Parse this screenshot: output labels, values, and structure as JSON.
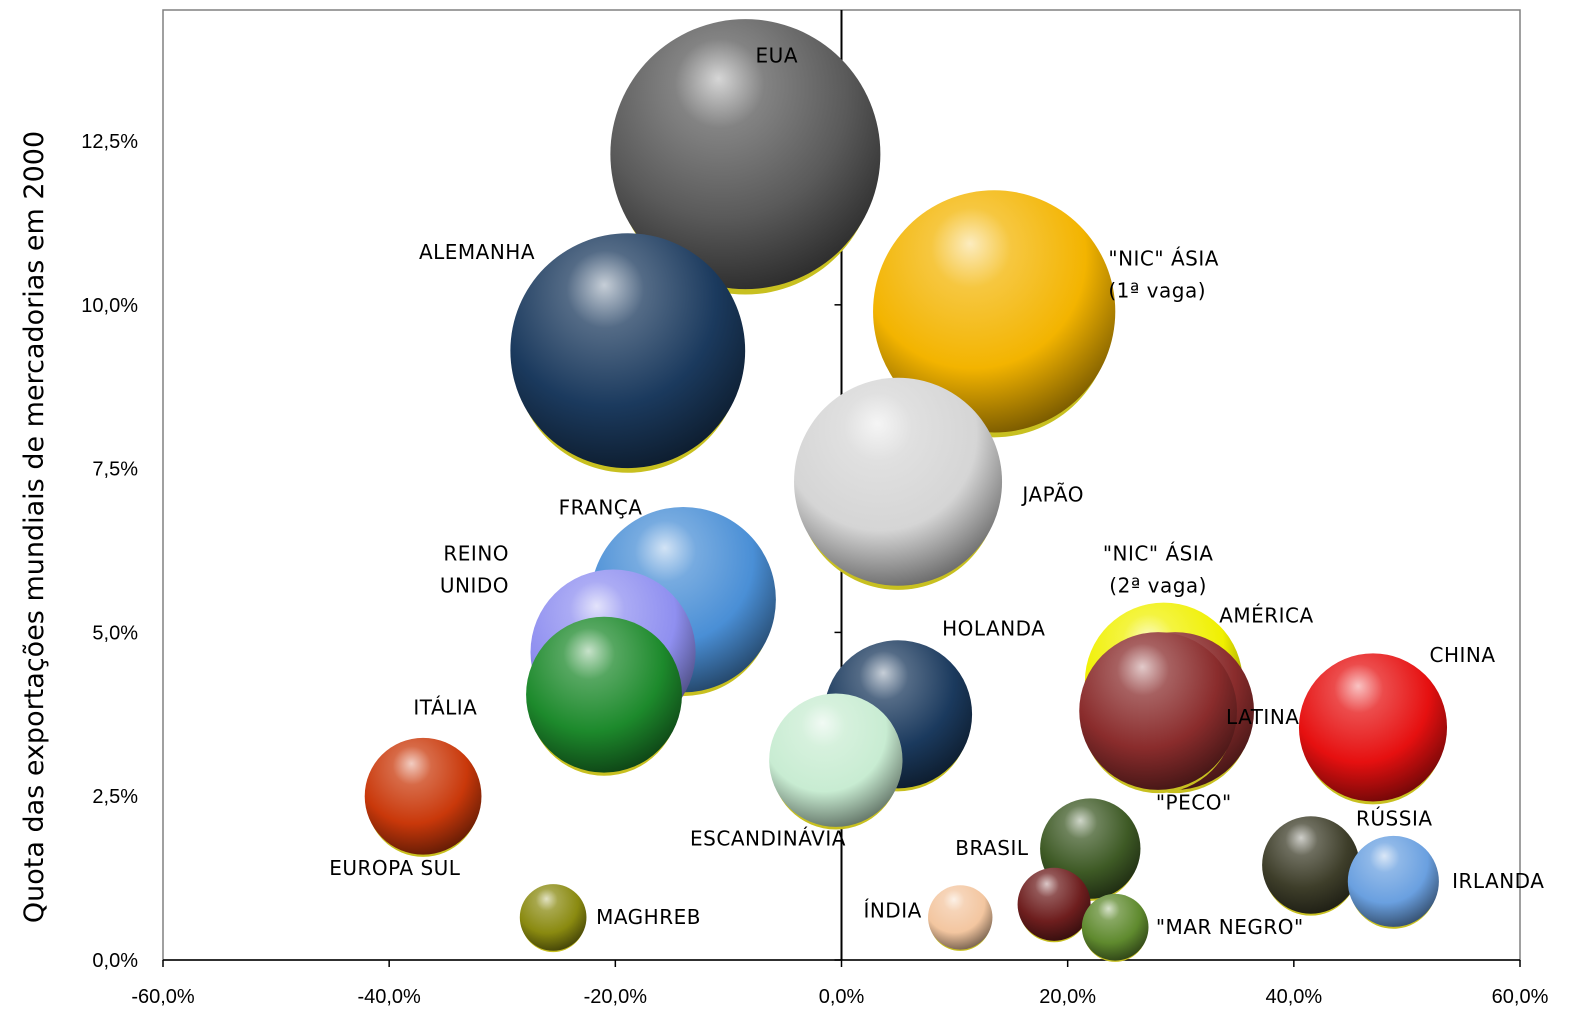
{
  "chart_data": {
    "type": "bubble",
    "title": "",
    "xlabel": "",
    "ylabel": "Quota das exportações mundiais de mercadorias em 2000",
    "xlim": [
      -60,
      60
    ],
    "ylim": [
      0,
      14.5
    ],
    "x_ticks": [
      {
        "value": -60,
        "label": "-60,0%"
      },
      {
        "value": -40,
        "label": "-40,0%"
      },
      {
        "value": -20,
        "label": "-20,0%"
      },
      {
        "value": 0,
        "label": "0,0%"
      },
      {
        "value": 20,
        "label": "20,0%"
      },
      {
        "value": 40,
        "label": "40,0%"
      },
      {
        "value": 60,
        "label": "60,0%"
      }
    ],
    "y_ticks": [
      {
        "value": 0,
        "label": "0,0%"
      },
      {
        "value": 2.5,
        "label": "2,5%"
      },
      {
        "value": 5,
        "label": "5,0%"
      },
      {
        "value": 7.5,
        "label": "7,5%"
      },
      {
        "value": 10,
        "label": "10,0%"
      },
      {
        "value": 12.5,
        "label": "12,5%"
      }
    ],
    "grid": false,
    "legend": "none",
    "points": [
      {
        "label": [
          "EUA"
        ],
        "x": -8.5,
        "y": 12.3,
        "size": 12.3,
        "color": "#5a5a5a",
        "label_anchor": "start",
        "label_dx": 0.9,
        "label_dy": 1.4
      },
      {
        "label": [
          "\"NIC\" ÁSIA",
          "(1ª vaga)"
        ],
        "x": 13.5,
        "y": 9.9,
        "size": 9.9,
        "color": "#f3b400",
        "label_anchor": "start",
        "label_dx": 10.1,
        "label_dy": 0.7
      },
      {
        "label": [
          "ALEMANHA"
        ],
        "x": -18.9,
        "y": 9.3,
        "size": 9.3,
        "color": "#1b3a5e",
        "label_anchor": "end",
        "label_dx": -8.2,
        "label_dy": 1.4
      },
      {
        "label": [
          "JAPÃO"
        ],
        "x": 5.0,
        "y": 7.3,
        "size": 7.3,
        "color": "#d5d5d5",
        "label_anchor": "start",
        "label_dx": 11.0,
        "label_dy": -0.3
      },
      {
        "label": [
          "FRANÇA"
        ],
        "x": -14.0,
        "y": 5.5,
        "size": 5.8,
        "color": "#4a8fd6",
        "label_anchor": "end",
        "label_dx": -3.6,
        "label_dy": 1.3
      },
      {
        "label": [
          "REINO",
          "UNIDO"
        ],
        "x": -20.2,
        "y": 4.7,
        "size": 4.6,
        "color": "#8f8ff0",
        "label_anchor": "end",
        "label_dx": -9.2,
        "label_dy": 1.4
      },
      {
        "label": [
          "ITÁLIA"
        ],
        "x": -21.0,
        "y": 4.05,
        "size": 4.1,
        "color": "#1d8a2c",
        "label_anchor": "end",
        "label_dx": -11.2,
        "label_dy": -0.3
      },
      {
        "label": [
          "HOLANDA"
        ],
        "x": 5.0,
        "y": 3.75,
        "size": 3.7,
        "color": "#1b3a5e",
        "label_anchor": "start",
        "label_dx": 3.9,
        "label_dy": 1.2
      },
      {
        "label": [
          "ESCANDINÁVIA"
        ],
        "x": -0.5,
        "y": 3.05,
        "size": 3.0,
        "color": "#c8ecd2",
        "label_anchor": "middle",
        "label_dx": -6.0,
        "label_dy": -1.3
      },
      {
        "label": [
          "AMÉRICA"
        ],
        "x": 28.5,
        "y": 4.25,
        "size": 4.2,
        "color": "#f0f000",
        "label_anchor": "start",
        "label_dx": 4.9,
        "label_dy": 0.9
      },
      {
        "label": [
          "\"NIC\" ÁSIA",
          "(2ª vaga)"
        ],
        "x": 29.5,
        "y": 3.8,
        "size": 4.2,
        "color": "#8a2c2c",
        "label_anchor": "middle",
        "label_dx": -1.5,
        "label_dy": 2.3
      },
      {
        "label": [
          "LATINA"
        ],
        "x": 28.0,
        "y": 3.8,
        "size": 4.2,
        "color": "#8a2c2c",
        "label_anchor": "start",
        "label_dx": 6.0,
        "label_dy": -0.2
      },
      {
        "label": [
          "CHINA"
        ],
        "x": 47.0,
        "y": 3.55,
        "size": 3.7,
        "color": "#e61010",
        "label_anchor": "start",
        "label_dx": 5.0,
        "label_dy": 1.0
      },
      {
        "label": [
          "EUROPA SUL"
        ],
        "x": -37.0,
        "y": 2.5,
        "size": 2.3,
        "color": "#c9380a",
        "label_anchor": "middle",
        "label_dx": -2.5,
        "label_dy": -1.2
      },
      {
        "label": [
          "\"PECO\""
        ],
        "x": 22.0,
        "y": 1.7,
        "size": 1.7,
        "color": "#3e5a25",
        "label_anchor": "start",
        "label_dx": 5.8,
        "label_dy": 0.6
      },
      {
        "label": [
          "RÚSSIA"
        ],
        "x": 41.5,
        "y": 1.45,
        "size": 1.6,
        "color": "#3e3e2a",
        "label_anchor": "start",
        "label_dx": 4.0,
        "label_dy": 0.6
      },
      {
        "label": [
          "IRLANDA"
        ],
        "x": 48.8,
        "y": 1.2,
        "size": 1.4,
        "color": "#6aa0e0",
        "label_anchor": "start",
        "label_dx": 5.2,
        "label_dy": -0.1
      },
      {
        "label": [
          "BRASIL"
        ],
        "x": 18.8,
        "y": 0.85,
        "size": 0.9,
        "color": "#6e1e1e",
        "label_anchor": "middle",
        "label_dx": -5.5,
        "label_dy": 0.75
      },
      {
        "label": [
          "ÍNDIA"
        ],
        "x": 10.5,
        "y": 0.65,
        "size": 0.7,
        "color": "#f3c6a0",
        "label_anchor": "end",
        "label_dx": -3.4,
        "label_dy": 0.0
      },
      {
        "label": [
          "\"MAR NEGRO\""
        ],
        "x": 24.2,
        "y": 0.5,
        "size": 0.75,
        "color": "#5f8a2e",
        "label_anchor": "start",
        "label_dx": 3.6,
        "label_dy": -0.1
      },
      {
        "label": [
          "MAGHREB"
        ],
        "x": -25.5,
        "y": 0.65,
        "size": 0.75,
        "color": "#8a8a10",
        "label_anchor": "start",
        "label_dx": 3.8,
        "label_dy": -0.1
      }
    ]
  },
  "colors": {
    "axis": "#000000",
    "plot_border": "#808080",
    "bubble_rim": "#c8c020"
  }
}
